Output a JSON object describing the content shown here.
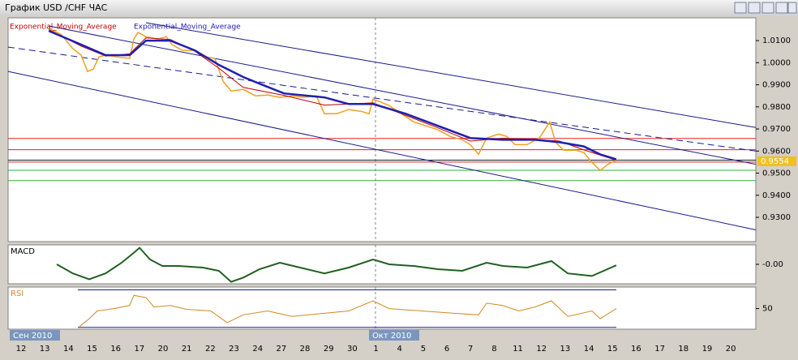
{
  "window": {
    "title": "График USD /CHF ЧАС"
  },
  "months": [
    "Сен 2010",
    "Окт 2010"
  ],
  "chart_data": [
    {
      "type": "line",
      "categories": [
        "12",
        "13",
        "14",
        "15",
        "16",
        "17",
        "20",
        "21",
        "22",
        "23",
        "24",
        "27",
        "28",
        "29",
        "30",
        "1",
        "4",
        "5",
        "6",
        "7",
        "8",
        "11",
        "12",
        "13",
        "14",
        "15",
        "16",
        "17",
        "18",
        "19",
        "20"
      ],
      "ylim": [
        0.919,
        1.0203
      ],
      "yticks": [
        {
          "value": 0.93,
          "label": "0.9300"
        },
        {
          "value": 0.94,
          "label": "0.9400"
        },
        {
          "value": 0.95,
          "label": "0.9500"
        },
        {
          "value": 0.96,
          "label": "0.9600"
        },
        {
          "value": 0.97,
          "label": "0.9700"
        },
        {
          "value": 0.98,
          "label": "0.9800"
        },
        {
          "value": 0.99,
          "label": "0.9900"
        },
        {
          "value": 1.0,
          "label": "1.0000"
        },
        {
          "value": 1.01,
          "label": "1.0100"
        }
      ],
      "current_price": 0.9554,
      "series": [
        {
          "color": "#f0a020",
          "width": 1.5,
          "x": [
            1.17,
            1.68,
            2.19,
            2.54,
            2.81,
            3.05,
            3.29,
            3.57,
            4.08,
            4.59,
            4.77,
            4.94,
            5.28,
            5.79,
            6.14,
            6.38,
            6.82,
            7.34,
            7.85,
            8.19,
            8.54,
            8.88,
            9.39,
            9.91,
            10.42,
            10.94,
            11.45,
            11.96,
            12.48,
            12.82,
            13.34,
            13.85,
            14.36,
            14.71,
            14.88,
            15.22,
            15.56,
            16.08,
            16.59,
            17.11,
            17.62,
            18.14,
            18.65,
            18.99,
            19.34,
            19.68,
            20.19,
            20.53,
            20.88,
            21.39,
            21.91,
            22.35,
            22.59,
            22.93,
            23.45,
            23.79,
            24.13,
            24.48,
            24.82,
            25.16
          ],
          "values": [
            1.0155,
            1.0129,
            1.0063,
            1.0034,
            0.996,
            0.9971,
            1.0026,
            1.0034,
            1.0026,
            1.0019,
            1.0107,
            1.0137,
            1.0118,
            1.0107,
            1.0118,
            1.0082,
            1.0056,
            1.0056,
            1.0026,
            1.0019,
            0.9916,
            0.9872,
            0.9879,
            0.985,
            0.9854,
            0.9843,
            0.985,
            0.9843,
            0.985,
            0.9769,
            0.9769,
            0.9788,
            0.978,
            0.9769,
            0.9835,
            0.9821,
            0.9806,
            0.9769,
            0.9732,
            0.9714,
            0.9696,
            0.9666,
            0.9651,
            0.9629,
            0.9585,
            0.9659,
            0.9677,
            0.9666,
            0.9629,
            0.9629,
            0.9659,
            0.9732,
            0.964,
            0.9604,
            0.9604,
            0.9593,
            0.9549,
            0.9512,
            0.9541,
            0.956
          ]
        },
        {
          "name": "Exponential_Moving_Average",
          "color": "#c00000",
          "width": 1,
          "x": [
            1.17,
            2.54,
            3.57,
            4.59,
            5.28,
            6.31,
            7.34,
            8.36,
            9.39,
            11.11,
            12.82,
            14.88,
            16.25,
            17.62,
            18.99,
            20.36,
            21.73,
            22.76,
            23.79,
            25.16
          ],
          "values": [
            1.015,
            1.0075,
            1.003,
            1.004,
            1.0112,
            1.0105,
            1.0052,
            0.9975,
            0.9888,
            0.9852,
            0.9808,
            0.9818,
            0.9762,
            0.9705,
            0.9645,
            0.9658,
            0.9652,
            0.9645,
            0.9605,
            0.9558
          ]
        },
        {
          "name": "Exponential_Moving_Average",
          "color": "#2020b0",
          "width": 2.5,
          "x": [
            1.17,
            2.54,
            3.57,
            4.59,
            5.28,
            6.31,
            7.34,
            8.36,
            9.39,
            10.08,
            11.11,
            12.82,
            13.85,
            14.88,
            16.25,
            17.62,
            18.99,
            20.36,
            21.73,
            22.76,
            23.79,
            24.48,
            25.16
          ],
          "values": [
            1.0144,
            1.0082,
            1.0034,
            1.0034,
            1.01,
            1.01,
            1.0056,
            0.999,
            0.9935,
            0.9905,
            0.9861,
            0.9843,
            0.9813,
            0.9813,
            0.9769,
            0.9714,
            0.9659,
            0.9651,
            0.9651,
            0.964,
            0.9621,
            0.9585,
            0.9563
          ]
        }
      ],
      "hlines": [
        {
          "value": 0.9657,
          "color": "#e02020"
        },
        {
          "value": 0.9606,
          "color": "#e02020"
        },
        {
          "value": 0.9559,
          "color": "#202020"
        },
        {
          "value": 0.955,
          "color": "#e02020"
        },
        {
          "value": 0.9513,
          "color": "#30b030"
        },
        {
          "value": 0.9466,
          "color": "#30b030"
        }
      ],
      "trendlines": [
        {
          "x": [
            -0.55,
            31.06
          ],
          "values": [
            0.99603,
            0.92434
          ],
          "color": "#1a1a8c",
          "dashed": false
        },
        {
          "x": [
            -0.55,
            31.06
          ],
          "values": [
            1.00706,
            0.96
          ],
          "color": "#1a1a8c",
          "dashed": true
        },
        {
          "x": [
            1.17,
            31.06
          ],
          "values": [
            1.01662,
            0.95401
          ],
          "color": "#1a1a8c",
          "dashed": false
        },
        {
          "x": [
            5.28,
            31.06
          ],
          "values": [
            1.01809,
            0.97066
          ],
          "color": "#1a1a8c",
          "dashed": false
        }
      ]
    },
    {
      "type": "line",
      "title": "MACD",
      "ylim": [
        -0.006,
        0.006
      ],
      "yticks": [
        {
          "value": 0,
          "label": "-0.00"
        }
      ],
      "series": [
        {
          "color": "#206020",
          "width": 2,
          "x": [
            1.51,
            2.19,
            2.88,
            3.57,
            4.25,
            4.77,
            5.01,
            5.45,
            5.97,
            6.65,
            7.68,
            8.36,
            8.88,
            9.39,
            10.08,
            10.94,
            11.79,
            12.82,
            13.85,
            14.88,
            15.56,
            16.59,
            17.62,
            18.65,
            19.68,
            20.36,
            21.39,
            22.42,
            23.11,
            24.13,
            25.16
          ],
          "values": [
            0,
            -0.0028,
            -0.0046,
            -0.0028,
            0.0005,
            0.0036,
            0.0051,
            0.0015,
            -0.0005,
            -0.0005,
            -0.001,
            -0.002,
            -0.0054,
            -0.0041,
            -0.0015,
            0.0005,
            -0.001,
            -0.0028,
            -0.001,
            0.0015,
            0,
            -0.0005,
            -0.0015,
            -0.002,
            0.0005,
            -0.0005,
            -0.001,
            0.001,
            -0.0028,
            -0.0036,
            -0.0003
          ]
        }
      ]
    },
    {
      "type": "line",
      "title": "RSI",
      "ylim": [
        28,
        73
      ],
      "yticks": [
        50
      ],
      "levels": [
        70,
        30
      ],
      "series": [
        {
          "color": "#d08a20",
          "width": 1,
          "x": [
            2.47,
            2.88,
            3.22,
            3.91,
            4.59,
            4.77,
            5.28,
            5.62,
            6.31,
            6.99,
            8.02,
            8.71,
            9.39,
            10.42,
            11.45,
            12.82,
            13.85,
            14.88,
            15.56,
            16.94,
            18.31,
            19.34,
            19.68,
            20.36,
            21.05,
            21.73,
            22.42,
            23.11,
            24.13,
            24.48,
            25.16
          ],
          "values": [
            30.8,
            39.2,
            47.5,
            50,
            53.3,
            64.2,
            61.7,
            51.7,
            53.3,
            49.2,
            47.5,
            35,
            43.3,
            47.5,
            41.7,
            45,
            47.5,
            58.3,
            50,
            47.5,
            45,
            43.3,
            55.8,
            53.3,
            47.5,
            51.7,
            58.3,
            41.7,
            47.5,
            39.2,
            50
          ]
        }
      ]
    }
  ]
}
